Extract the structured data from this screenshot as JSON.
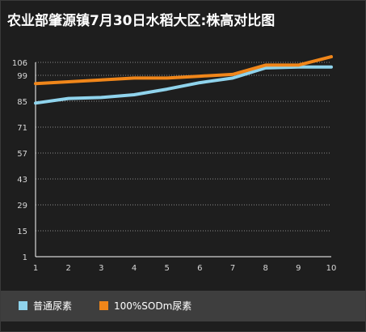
{
  "title": "农业部肇源镇7月30日水稻大区:株高对比图",
  "colors": {
    "background": "#1e1e1e",
    "legend_bg": "#3e3e3e",
    "text": "#ffffff",
    "series1": "#8fd3ec",
    "series2": "#f0861a",
    "grid": "#8a8a8a"
  },
  "chart_data": {
    "type": "line",
    "title": "农业部肇源镇7月30日水稻大区:株高对比图",
    "xlabel": "",
    "ylabel": "",
    "x": [
      1,
      2,
      3,
      4,
      5,
      6,
      7,
      8,
      9,
      10
    ],
    "ylim": [
      1,
      106
    ],
    "yticks": [
      1,
      15,
      29,
      43,
      57,
      71,
      85,
      99,
      106
    ],
    "grid": "horizontal dotted",
    "legend_position": "bottom",
    "series": [
      {
        "name": "普通尿素",
        "color": "#8fd3ec",
        "values": [
          84,
          86.5,
          87,
          88.5,
          91.5,
          95,
          97.5,
          103,
          103.5,
          103.5
        ]
      },
      {
        "name": "100%SODm尿素",
        "color": "#f0861a",
        "values": [
          94.5,
          95.5,
          96.5,
          97.5,
          97.5,
          98.5,
          99.5,
          104.5,
          104.5,
          109
        ]
      }
    ]
  }
}
